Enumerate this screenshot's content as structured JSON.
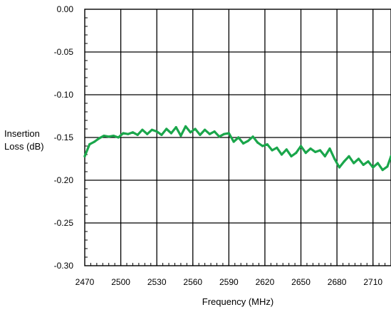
{
  "chart_data": {
    "type": "line",
    "title": "",
    "xlabel": "Frequency (MHz)",
    "ylabel_lines": [
      "Insertion",
      "Loss (dB)"
    ],
    "xlim": [
      2470,
      2725
    ],
    "ylim": [
      -0.3,
      0.0
    ],
    "x_ticks": [
      2470,
      2500,
      2530,
      2560,
      2590,
      2620,
      2650,
      2680,
      2710
    ],
    "x_tick_labels": [
      "2470",
      "2500",
      "2530",
      "2560",
      "2590",
      "2620",
      "2650",
      "2680",
      "2710"
    ],
    "y_ticks": [
      0.0,
      -0.05,
      -0.1,
      -0.15,
      -0.2,
      -0.25,
      -0.3
    ],
    "y_tick_labels": [
      "0.00",
      "-0.05",
      "-0.10",
      "-0.15",
      "-0.20",
      "-0.25",
      "-0.30"
    ],
    "grid": true,
    "series": [
      {
        "color": "#1aa64b",
        "x": [
          2470,
          2474,
          2478,
          2482,
          2486,
          2490,
          2494,
          2498,
          2502,
          2506,
          2510,
          2514,
          2518,
          2522,
          2526,
          2530,
          2534,
          2538,
          2542,
          2546,
          2550,
          2554,
          2558,
          2562,
          2566,
          2570,
          2574,
          2578,
          2582,
          2586,
          2590,
          2594,
          2598,
          2602,
          2606,
          2610,
          2614,
          2618,
          2622,
          2626,
          2630,
          2634,
          2638,
          2642,
          2646,
          2650,
          2654,
          2658,
          2662,
          2666,
          2670,
          2674,
          2678,
          2682,
          2686,
          2690,
          2694,
          2698,
          2702,
          2706,
          2710,
          2714,
          2718,
          2722,
          2725
        ],
        "y": [
          -0.172,
          -0.158,
          -0.155,
          -0.151,
          -0.148,
          -0.149,
          -0.148,
          -0.15,
          -0.145,
          -0.146,
          -0.144,
          -0.147,
          -0.141,
          -0.146,
          -0.141,
          -0.143,
          -0.147,
          -0.14,
          -0.145,
          -0.138,
          -0.148,
          -0.137,
          -0.144,
          -0.14,
          -0.147,
          -0.141,
          -0.146,
          -0.143,
          -0.149,
          -0.146,
          -0.145,
          -0.155,
          -0.15,
          -0.157,
          -0.154,
          -0.149,
          -0.156,
          -0.16,
          -0.158,
          -0.165,
          -0.162,
          -0.17,
          -0.164,
          -0.172,
          -0.168,
          -0.16,
          -0.168,
          -0.163,
          -0.167,
          -0.165,
          -0.172,
          -0.163,
          -0.175,
          -0.185,
          -0.178,
          -0.172,
          -0.18,
          -0.175,
          -0.182,
          -0.178,
          -0.185,
          -0.18,
          -0.188,
          -0.184,
          -0.172
        ]
      }
    ]
  }
}
